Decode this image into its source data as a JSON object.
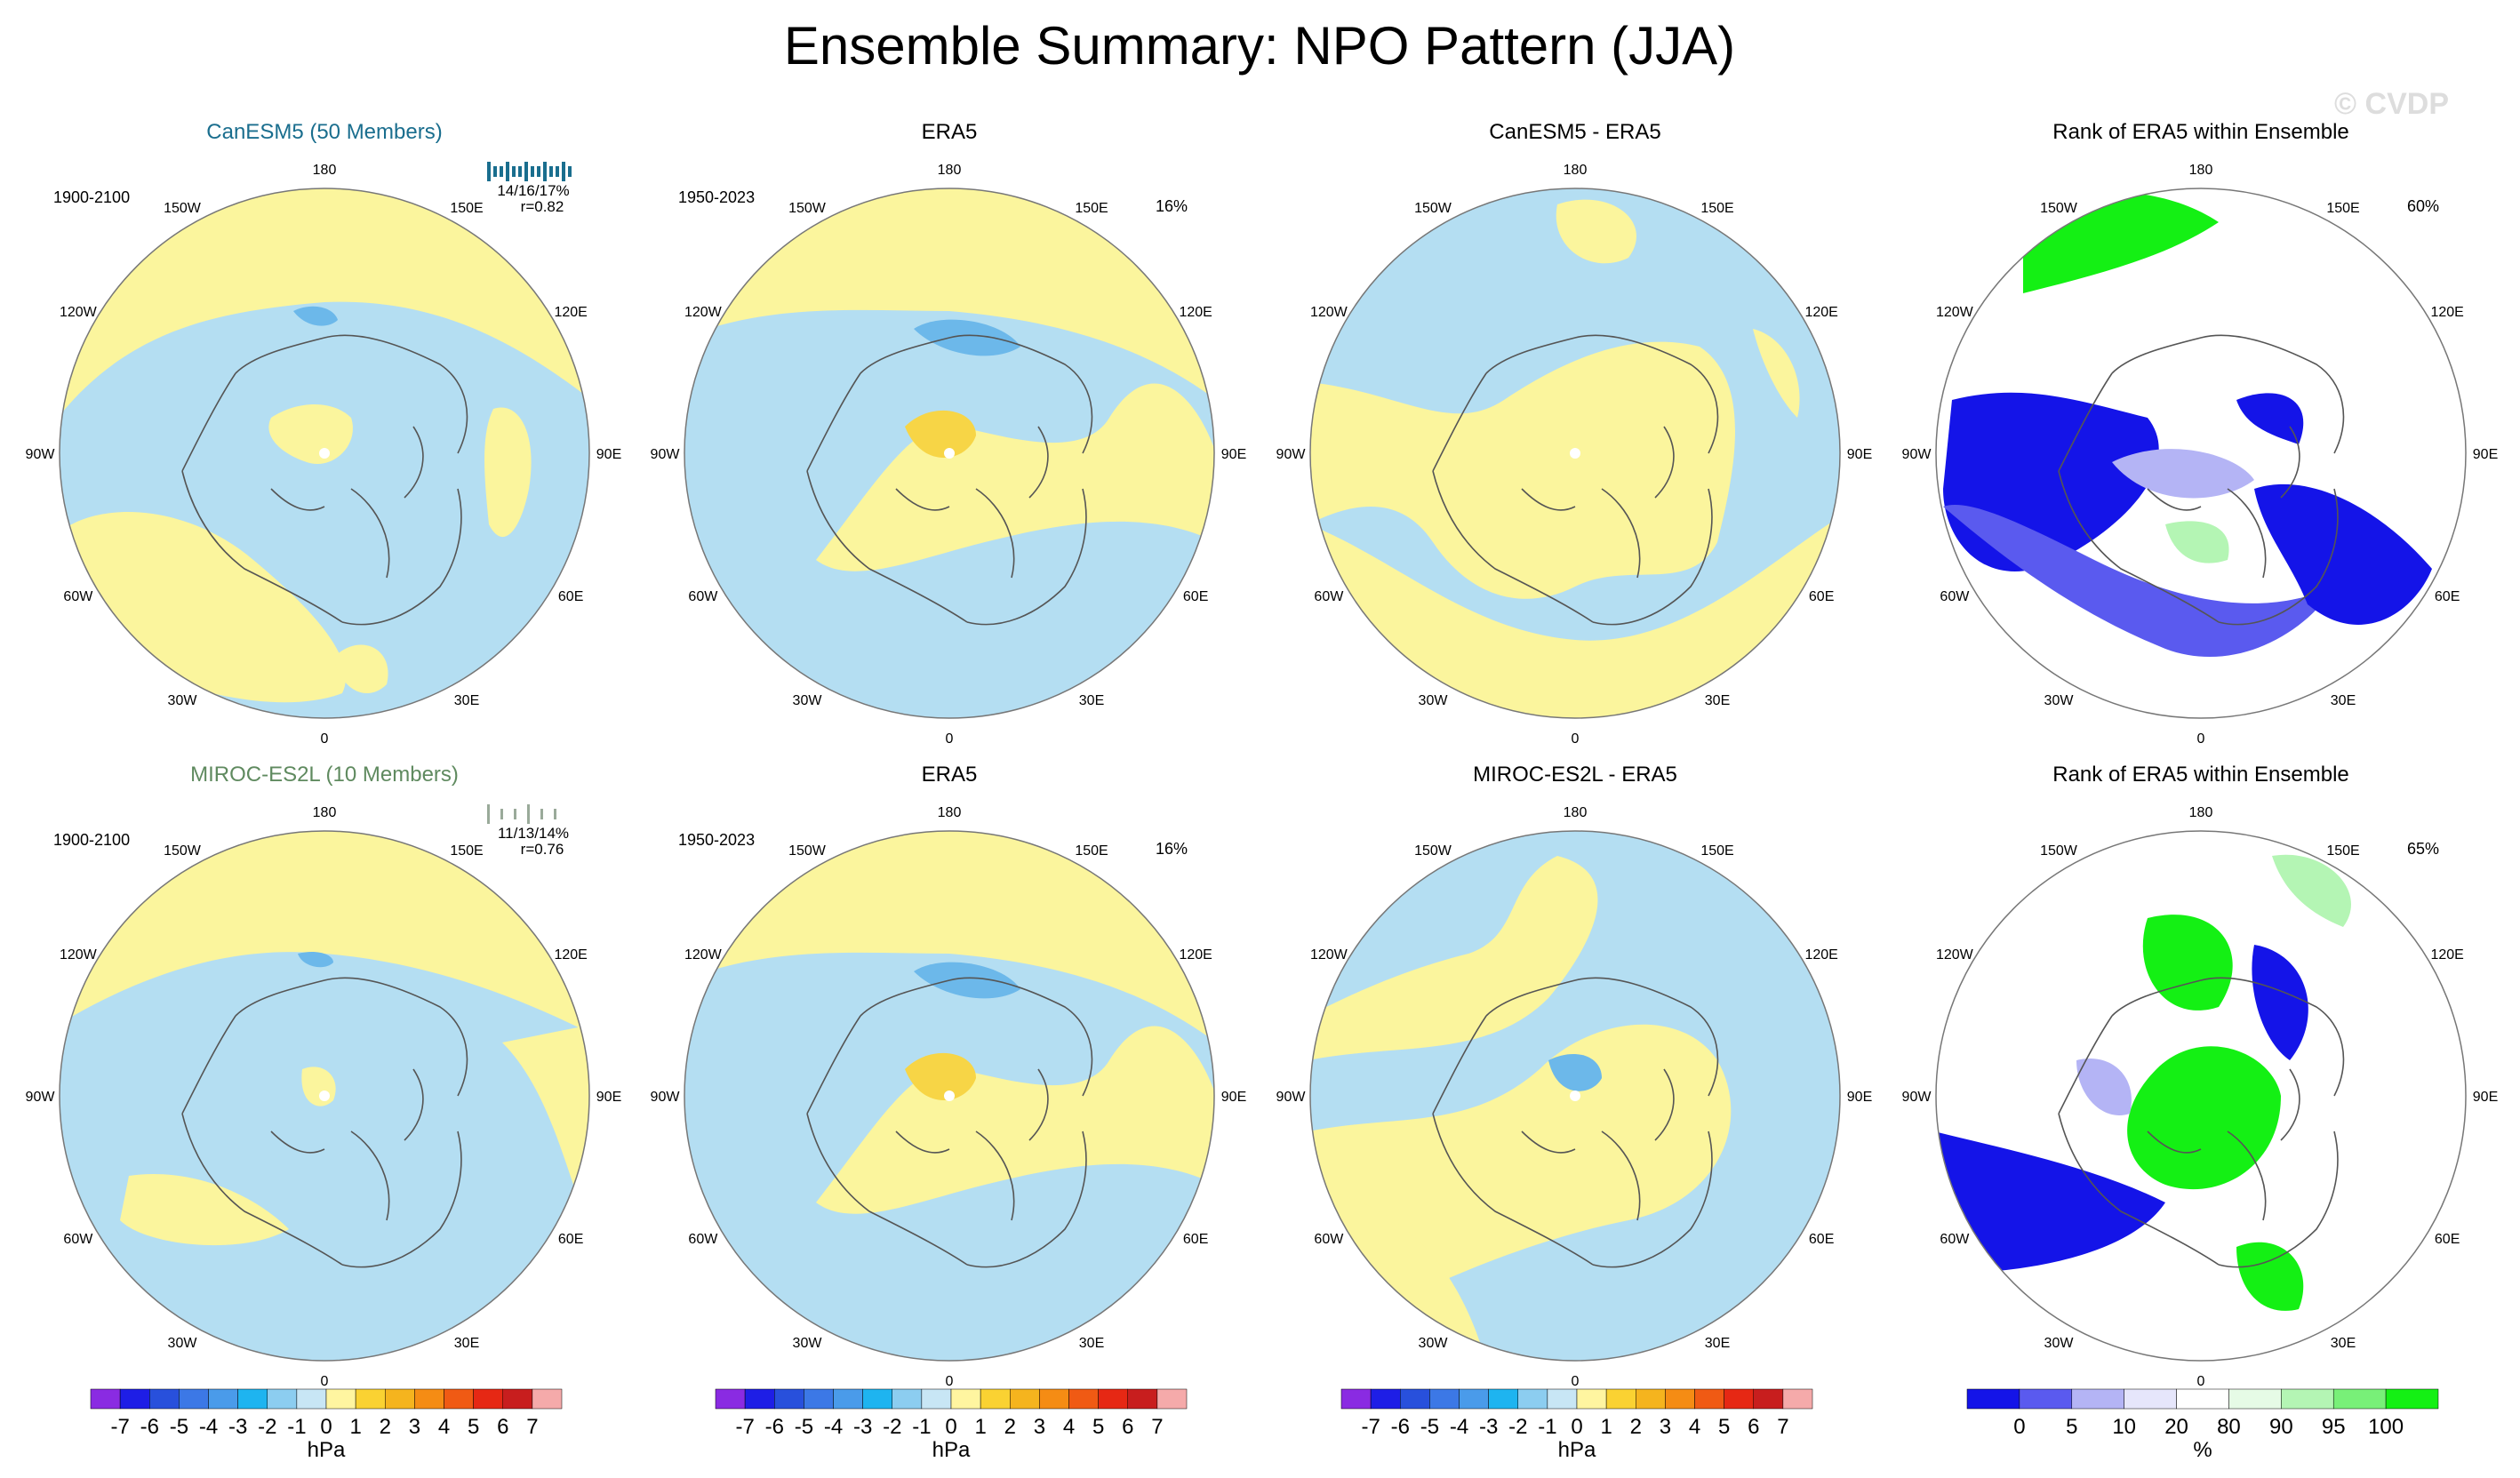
{
  "title": "Ensemble Summary: NPO Pattern (JJA)",
  "watermark": "© CVDP",
  "colors": {
    "ocean_blue": "#b4def2",
    "light_yellow": "#fbf59d",
    "gold": "#f7d546",
    "blue_mid": "#6cb8ea",
    "rank_dark_blue": "#1414e8",
    "rank_mid_blue": "#5a5aef",
    "rank_light_blue": "#b4b4f5",
    "rank_pale_blue": "#e6e6fb",
    "rank_pale_green": "#e6fbe6",
    "rank_light_green": "#b4f5b4",
    "rank_mid_green": "#78f078",
    "rank_green": "#14f014",
    "coast": "#555555",
    "model1_title_color": "#1a6e8e",
    "model2_title_color": "#5f8a5f"
  },
  "lon_labels": [
    "180",
    "150E",
    "120E",
    "90E",
    "60E",
    "30E",
    "0",
    "30W",
    "60W",
    "90W",
    "120W",
    "150W"
  ],
  "rows": [
    {
      "panels": [
        {
          "title": "CanESM5 (50 Members)",
          "years": "1900-2100",
          "stats": "14/16/17%",
          "corr": "r=0.82",
          "kind": "model"
        },
        {
          "title": "ERA5",
          "years": "1950-2023",
          "pct": "16%",
          "kind": "obs"
        },
        {
          "title": "CanESM5 - ERA5",
          "kind": "diff"
        },
        {
          "title": "Rank of ERA5 within Ensemble",
          "pct": "60%",
          "kind": "rank"
        }
      ]
    },
    {
      "panels": [
        {
          "title": "MIROC-ES2L (10 Members)",
          "years": "1900-2100",
          "stats": "11/13/14%",
          "corr": "r=0.76",
          "kind": "model"
        },
        {
          "title": "ERA5",
          "years": "1950-2023",
          "pct": "16%",
          "kind": "obs"
        },
        {
          "title": "MIROC-ES2L - ERA5",
          "kind": "diff"
        },
        {
          "title": "Rank of ERA5 within Ensemble",
          "pct": "65%",
          "kind": "rank"
        }
      ]
    }
  ],
  "colorbars": [
    {
      "labels": [
        "-7",
        "-6",
        "-5",
        "-4",
        "-3",
        "-2",
        "-1",
        "0",
        "1",
        "2",
        "3",
        "4",
        "5",
        "6",
        "7"
      ],
      "unit": "hPa",
      "colors": [
        "#8a2be2",
        "#1e1ee6",
        "#2850dc",
        "#3c78e6",
        "#4a9bea",
        "#1eb4f0",
        "#8ccdf0",
        "#c8e6f5",
        "#fff5a0",
        "#fad232",
        "#f5b41e",
        "#f58c14",
        "#f05a14",
        "#e62814",
        "#c81e1e",
        "#f5aaaa"
      ]
    },
    {
      "labels": [
        "-7",
        "-6",
        "-5",
        "-4",
        "-3",
        "-2",
        "-1",
        "0",
        "1",
        "2",
        "3",
        "4",
        "5",
        "6",
        "7"
      ],
      "unit": "hPa",
      "colors": [
        "#8a2be2",
        "#1e1ee6",
        "#2850dc",
        "#3c78e6",
        "#4a9bea",
        "#1eb4f0",
        "#8ccdf0",
        "#c8e6f5",
        "#fff5a0",
        "#fad232",
        "#f5b41e",
        "#f58c14",
        "#f05a14",
        "#e62814",
        "#c81e1e",
        "#f5aaaa"
      ]
    },
    {
      "labels": [
        "-7",
        "-6",
        "-5",
        "-4",
        "-3",
        "-2",
        "-1",
        "0",
        "1",
        "2",
        "3",
        "4",
        "5",
        "6",
        "7"
      ],
      "unit": "hPa",
      "colors": [
        "#8a2be2",
        "#1e1ee6",
        "#2850dc",
        "#3c78e6",
        "#4a9bea",
        "#1eb4f0",
        "#8ccdf0",
        "#c8e6f5",
        "#fff5a0",
        "#fad232",
        "#f5b41e",
        "#f58c14",
        "#f05a14",
        "#e62814",
        "#c81e1e",
        "#f5aaaa"
      ]
    },
    {
      "labels": [
        "0",
        "5",
        "10",
        "20",
        "80",
        "90",
        "95",
        "100"
      ],
      "unit": "%",
      "colors": [
        "#1414e8",
        "#5a5aef",
        "#b4b4f5",
        "#e6e6fb",
        "#ffffff",
        "#e6fbe6",
        "#b4f5b4",
        "#78f078",
        "#14f014"
      ]
    }
  ]
}
